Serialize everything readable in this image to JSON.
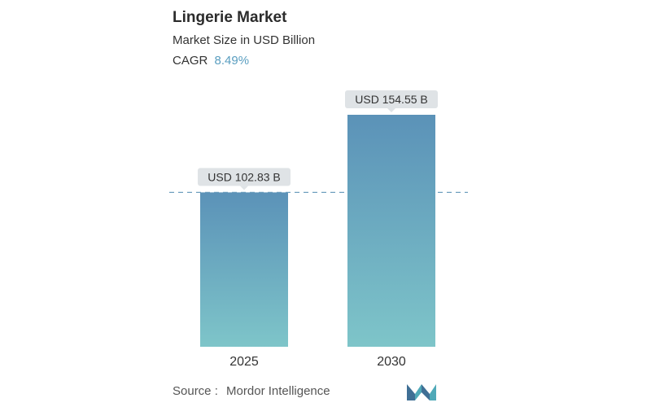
{
  "header": {
    "title": "Lingerie Market",
    "subtitle": "Market Size in USD Billion",
    "cagr_label": "CAGR",
    "cagr_value": "8.49%"
  },
  "footer": {
    "source_label": "Source :",
    "source_name": "Mordor Intelligence",
    "logo_icon": "mordor-intelligence-logo-icon"
  },
  "colors": {
    "bar_top": "#5b92b8",
    "bar_bottom": "#7ec5c9",
    "label_box": "#dfe3e6",
    "dashed_line": "#6f9fbf",
    "accent": "#5a9ec0"
  },
  "chart_data": {
    "type": "bar",
    "categories": [
      "2025",
      "2030"
    ],
    "values": [
      102.83,
      154.55
    ],
    "value_labels": [
      "USD 102.83 B",
      "USD 154.55 B"
    ],
    "ylabel": "",
    "xlabel": "",
    "ylim": [
      0,
      154.55
    ],
    "grid": false,
    "legend": "none",
    "reference_line": "dashed line at first bar value"
  }
}
